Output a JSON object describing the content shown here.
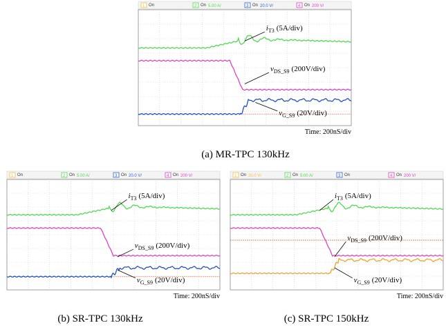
{
  "panels": [
    {
      "channels": [
        {
          "num": "1",
          "state": "On"
        },
        {
          "num": "2",
          "state": "On",
          "scale": "5.00 A/"
        },
        {
          "num": "3",
          "state": "On",
          "scale": "20.0 V/"
        },
        {
          "num": "4",
          "state": "On",
          "scale": "200 V/"
        }
      ],
      "annotations": [
        {
          "symbol": "i",
          "sub": "T3",
          "scale": "(5A/div)"
        },
        {
          "symbol": "v",
          "sub": "DS_S9",
          "scale": "(200V/div)"
        },
        {
          "symbol": "v",
          "sub": "G_S9",
          "scale": "(20V/div)"
        }
      ],
      "time": "Time: 200nS/div",
      "caption": "(a) MR-TPC 130kHz"
    },
    {
      "channels": [
        {
          "num": "1",
          "state": "On"
        },
        {
          "num": "2",
          "state": "On",
          "scale": "5.00 A/"
        },
        {
          "num": "3",
          "state": "On",
          "scale": "20.0 V/"
        },
        {
          "num": "4",
          "state": "On",
          "scale": "200 V/"
        }
      ],
      "annotations": [
        {
          "symbol": "i",
          "sub": "T3",
          "scale": "(5A/div)"
        },
        {
          "symbol": "v",
          "sub": "DS_S9",
          "scale": "(200V/div)"
        },
        {
          "symbol": "v",
          "sub": "G_S9",
          "scale": "(20V/div)"
        }
      ],
      "time": "Time: 200nS/div",
      "caption": "(b)   SR-TPC 130kHz"
    },
    {
      "channels": [
        {
          "num": "1",
          "state": "On",
          "scale": "20.0 V/"
        },
        {
          "num": "2",
          "state": "On",
          "scale": "5.00 A/"
        },
        {
          "num": "3",
          "state": "On"
        },
        {
          "num": "4",
          "state": "On",
          "scale": "200 V/"
        }
      ],
      "annotations": [
        {
          "symbol": "i",
          "sub": "T3",
          "scale": "(5A/div)"
        },
        {
          "symbol": "v",
          "sub": "DS_S9",
          "scale": "(200V/div)"
        },
        {
          "symbol": "v",
          "sub": "G_S9",
          "scale": "(20V/div)"
        }
      ],
      "time": "Time: 200nS/div",
      "caption": "(c) SR-TPC 150kHz"
    }
  ]
}
